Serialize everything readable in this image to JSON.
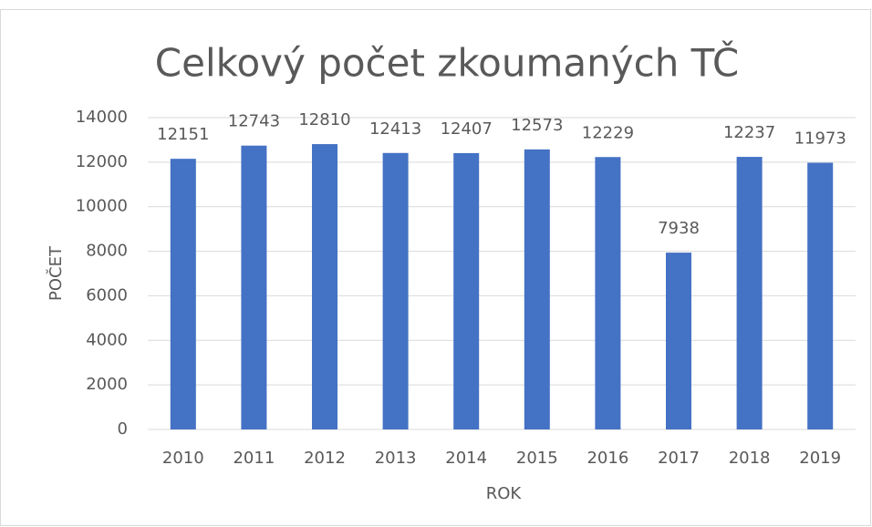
{
  "chart_data": {
    "type": "bar",
    "title": "Celkový počet zkoumaných TČ",
    "categories": [
      "2010",
      "2011",
      "2012",
      "2013",
      "2014",
      "2015",
      "2016",
      "2017",
      "2018",
      "2019"
    ],
    "values": [
      12151,
      12743,
      12810,
      12413,
      12407,
      12573,
      12229,
      7938,
      12237,
      11973
    ],
    "color": "#4472c4",
    "x_label": "ROK",
    "y_label": "POČET",
    "ylim": [
      0,
      14000
    ],
    "yticks": [
      0,
      2000,
      4000,
      6000,
      8000,
      10000,
      12000,
      14000
    ],
    "grid": true
  }
}
